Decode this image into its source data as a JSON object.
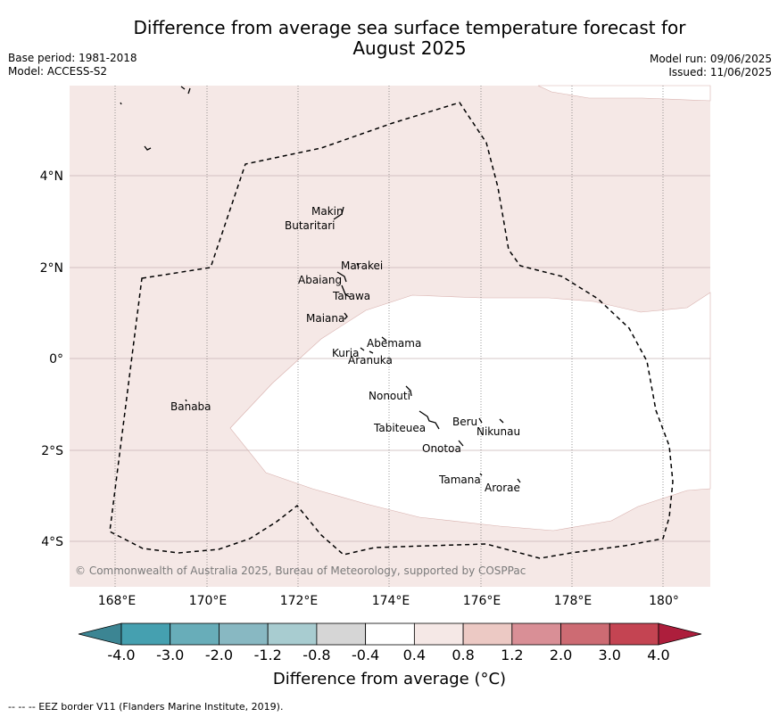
{
  "title": "Difference from average sea surface temperature forecast for August 2025",
  "meta": {
    "base_period": "Base period: 1981-2018",
    "model": "Model: ACCESS-S2",
    "model_run": "Model run: 09/06/2025",
    "issued": "Issued: 11/06/2025"
  },
  "copyright": "© Commonwealth of Australia 2025, Bureau of Meteorology, supported by COSPPac",
  "axes": {
    "lon_ticks": [
      "168°E",
      "170°E",
      "172°E",
      "174°E",
      "176°E",
      "178°E",
      "180°"
    ],
    "lat_ticks": [
      "4°N",
      "2°N",
      "0°",
      "2°S",
      "4°S"
    ]
  },
  "places": [
    {
      "name": "Makin"
    },
    {
      "name": "Butaritari"
    },
    {
      "name": "Marakei"
    },
    {
      "name": "Abaiang"
    },
    {
      "name": "Tarawa"
    },
    {
      "name": "Maiana"
    },
    {
      "name": "Abemama"
    },
    {
      "name": "Kuria"
    },
    {
      "name": "Aranuka"
    },
    {
      "name": "Banaba"
    },
    {
      "name": "Nonouti"
    },
    {
      "name": "Beru"
    },
    {
      "name": "Nikunau"
    },
    {
      "name": "Tabiteuea"
    },
    {
      "name": "Onotoa"
    },
    {
      "name": "Tamana"
    },
    {
      "name": "Arorae"
    }
  ],
  "colorbar": {
    "bin_colors": [
      "#3c8593",
      "#45a0b0",
      "#68adb9",
      "#88b8c2",
      "#a8ccd0",
      "#d6d6d6",
      "#ffffff",
      "#f5e8e6",
      "#ecc9c4",
      "#d98f96",
      "#cd6b73",
      "#c44452",
      "#ad1e3c"
    ],
    "tick_labels": [
      "-4.0",
      "-3.0",
      "-2.0",
      "-1.2",
      "-0.8",
      "-0.4",
      "0.4",
      "0.8",
      "1.2",
      "2.0",
      "3.0",
      "4.0"
    ],
    "label": "Difference from average (°C)"
  },
  "footnote": "--  --  -- EEZ border V11 (Flanders Marine Institute, 2019)."
}
